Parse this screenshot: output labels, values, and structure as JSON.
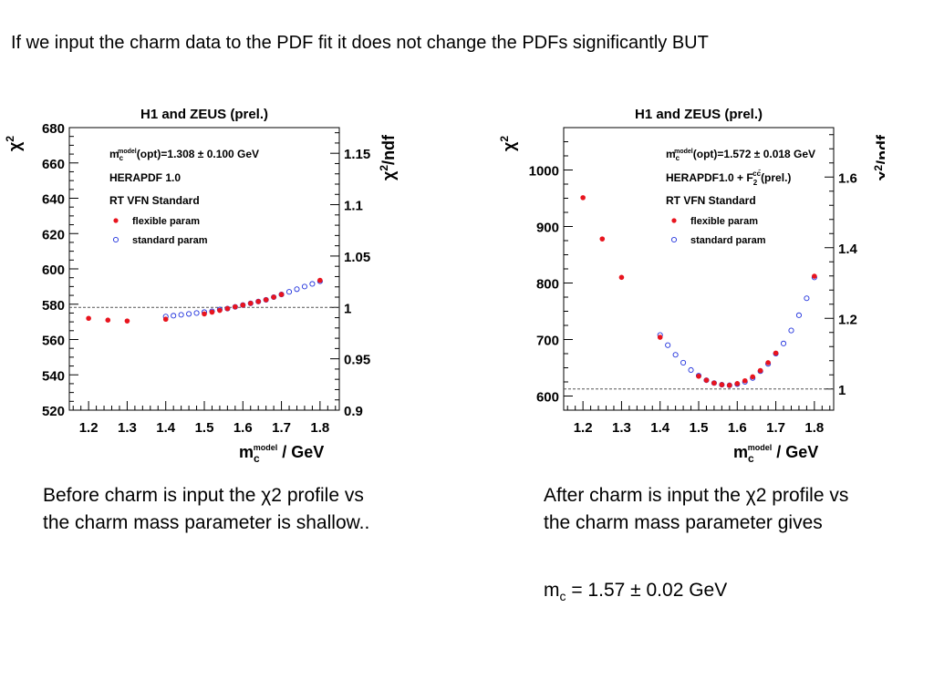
{
  "headline": "If we input the charm data to the PDF fit it does not change the PDFs significantly BUT",
  "chart_data": [
    {
      "type": "scatter",
      "title": "H1 and ZEUS (prel.)",
      "xlabel_main": "m",
      "xlabel_sub": "c",
      "xlabel_sup": "model",
      "xlabel_unit": " / GeV",
      "ylabel_main": "χ",
      "ylabel_sup": "2",
      "y2label_main": "χ",
      "y2label_sup": "2",
      "y2label_rest": "/ndf",
      "xlim": [
        1.15,
        1.85
      ],
      "ylim": [
        520,
        680
      ],
      "y2lim": [
        0.9,
        1.175
      ],
      "xticks": [
        1.2,
        1.3,
        1.4,
        1.5,
        1.6,
        1.7,
        1.8
      ],
      "xtick_labels": [
        "1.2",
        "1.3",
        "1.4",
        "1.5",
        "1.6",
        "1.7",
        "1.8"
      ],
      "yticks": [
        520,
        540,
        560,
        580,
        600,
        620,
        640,
        660,
        680
      ],
      "ytick_labels": [
        "520",
        "540",
        "560",
        "580",
        "600",
        "620",
        "640",
        "660",
        "680"
      ],
      "y2ticks": [
        0.9,
        0.95,
        1.0,
        1.05,
        1.1,
        1.15
      ],
      "y2tick_labels": [
        "0.9",
        "0.95",
        "1",
        "1.05",
        "1.1",
        "1.15"
      ],
      "reference_y2": 1.0,
      "legend_position": "top-left",
      "annotations": {
        "line1_main": "m",
        "line1_sub": "c",
        "line1_sup": "model",
        "line1_rest": "(opt)=1.308 ± 0.100 GeV",
        "line2": "HERAPDF 1.0",
        "line3": "RT VFN Standard"
      },
      "series": [
        {
          "name": "flexible param",
          "marker": "filled-circle",
          "color": "#e8141e",
          "x": [
            1.2,
            1.25,
            1.3,
            1.4,
            1.5,
            1.52,
            1.54,
            1.56,
            1.58,
            1.6,
            1.62,
            1.64,
            1.66,
            1.68,
            1.7,
            1.8
          ],
          "y": [
            572,
            571,
            570.5,
            571.5,
            574.5,
            575.5,
            576.5,
            577.5,
            578.5,
            579.5,
            580.5,
            581.5,
            582.5,
            584,
            585.5,
            593.5
          ]
        },
        {
          "name": "standard param",
          "marker": "open-circle",
          "color": "#2233dd",
          "x": [
            1.4,
            1.42,
            1.44,
            1.46,
            1.48,
            1.5,
            1.52,
            1.54,
            1.56,
            1.58,
            1.6,
            1.62,
            1.64,
            1.66,
            1.68,
            1.7,
            1.72,
            1.74,
            1.76,
            1.78,
            1.8
          ],
          "y": [
            573,
            573.5,
            574,
            574.5,
            575,
            575.5,
            576,
            577,
            577.5,
            578.5,
            579.5,
            580.5,
            581.5,
            582.5,
            584,
            585.5,
            587,
            588.5,
            590,
            591.5,
            593
          ]
        }
      ]
    },
    {
      "type": "scatter",
      "title": "H1 and ZEUS (prel.)",
      "xlabel_main": "m",
      "xlabel_sub": "c",
      "xlabel_sup": "model",
      "xlabel_unit": " / GeV",
      "ylabel_main": "χ",
      "ylabel_sup": "2",
      "y2label_main": "χ",
      "y2label_sup": "2",
      "y2label_rest": "/ndf",
      "xlim": [
        1.15,
        1.85
      ],
      "ylim": [
        575,
        1075
      ],
      "y2lim": [
        0.94,
        1.74
      ],
      "xticks": [
        1.2,
        1.3,
        1.4,
        1.5,
        1.6,
        1.7,
        1.8
      ],
      "xtick_labels": [
        "1.2",
        "1.3",
        "1.4",
        "1.5",
        "1.6",
        "1.7",
        "1.8"
      ],
      "yticks": [
        600,
        700,
        800,
        900,
        1000
      ],
      "ytick_labels": [
        "600",
        "700",
        "800",
        "900",
        "1000"
      ],
      "y2ticks": [
        1.0,
        1.2,
        1.4,
        1.6
      ],
      "y2tick_labels": [
        "1",
        "1.2",
        "1.4",
        "1.6"
      ],
      "reference_y2": 1.0,
      "legend_position": "top-right",
      "annotations": {
        "line1_main": "m",
        "line1_sub": "c",
        "line1_sup": "model",
        "line1_rest": "(opt)=1.572 ± 0.018 GeV",
        "line2_main": "HERAPDF1.0 + F",
        "line2_sub": "2",
        "line2_sup": "cc̄",
        "line2_rest": "(prel.)",
        "line3": "RT VFN Standard"
      },
      "series": [
        {
          "name": "flexible param",
          "marker": "filled-circle",
          "color": "#e8141e",
          "x": [
            1.2,
            1.25,
            1.3,
            1.4,
            1.5,
            1.52,
            1.54,
            1.56,
            1.58,
            1.6,
            1.62,
            1.64,
            1.66,
            1.68,
            1.7,
            1.8
          ],
          "y": [
            951,
            878,
            810,
            704,
            635,
            628,
            623,
            620,
            619,
            622,
            627,
            634,
            645,
            659,
            676,
            812
          ]
        },
        {
          "name": "standard param",
          "marker": "open-circle",
          "color": "#2233dd",
          "x": [
            1.4,
            1.42,
            1.44,
            1.46,
            1.48,
            1.5,
            1.52,
            1.54,
            1.56,
            1.58,
            1.6,
            1.62,
            1.64,
            1.66,
            1.68,
            1.7,
            1.72,
            1.74,
            1.76,
            1.78,
            1.8
          ],
          "y": [
            708,
            690,
            673,
            659,
            646,
            636,
            628,
            623,
            620,
            619,
            621,
            625,
            632,
            644,
            657,
            675,
            693,
            716,
            743,
            773,
            810
          ]
        }
      ]
    }
  ],
  "captions": {
    "left": "Before charm is input the χ2 profile vs the charm mass parameter is shallow..",
    "right": "After charm is input the χ2 profile vs the charm mass parameter gives"
  },
  "result": {
    "symbol": "m",
    "subscript": "c",
    "value": " = 1.57 ± 0.02 GeV"
  }
}
